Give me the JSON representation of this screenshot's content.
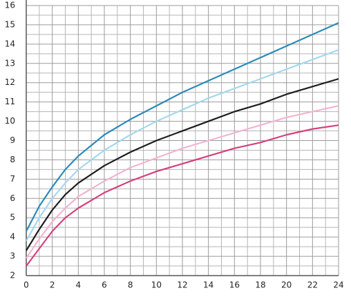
{
  "chart_data": {
    "type": "line",
    "x": [
      0,
      1,
      2,
      3,
      4,
      6,
      8,
      10,
      12,
      14,
      16,
      18,
      20,
      22,
      24
    ],
    "series": [
      {
        "color": "#2a8ab8",
        "values": [
          4.3,
          5.6,
          6.6,
          7.5,
          8.2,
          9.3,
          10.1,
          10.8,
          11.5,
          12.1,
          12.7,
          13.3,
          13.9,
          14.5,
          15.1
        ]
      },
      {
        "color": "#a3d8ee",
        "values": [
          3.8,
          5.0,
          6.0,
          6.8,
          7.5,
          8.5,
          9.3,
          10.0,
          10.6,
          11.2,
          11.7,
          12.2,
          12.7,
          13.2,
          13.7
        ]
      },
      {
        "color": "#1c1c1c",
        "values": [
          3.3,
          4.4,
          5.4,
          6.2,
          6.8,
          7.7,
          8.4,
          9.0,
          9.5,
          10.0,
          10.5,
          10.9,
          11.4,
          11.8,
          12.2
        ]
      },
      {
        "color": "#f2b4d0",
        "values": [
          2.9,
          3.9,
          4.8,
          5.5,
          6.1,
          6.9,
          7.6,
          8.1,
          8.6,
          9.0,
          9.4,
          9.8,
          10.2,
          10.5,
          10.8
        ]
      },
      {
        "color": "#d63f7e",
        "values": [
          2.5,
          3.4,
          4.3,
          5.0,
          5.5,
          6.3,
          6.9,
          7.4,
          7.8,
          8.2,
          8.6,
          8.9,
          9.3,
          9.6,
          9.8
        ]
      }
    ],
    "xlim": [
      0,
      24
    ],
    "xticks": [
      0,
      2,
      4,
      6,
      8,
      10,
      12,
      14,
      16,
      18,
      20,
      22,
      24
    ],
    "ylim": [
      2,
      16
    ],
    "yticks": [
      2,
      3,
      4,
      5,
      6,
      7,
      8,
      9,
      10,
      11,
      12,
      13,
      14,
      15,
      16
    ],
    "grid": true
  }
}
